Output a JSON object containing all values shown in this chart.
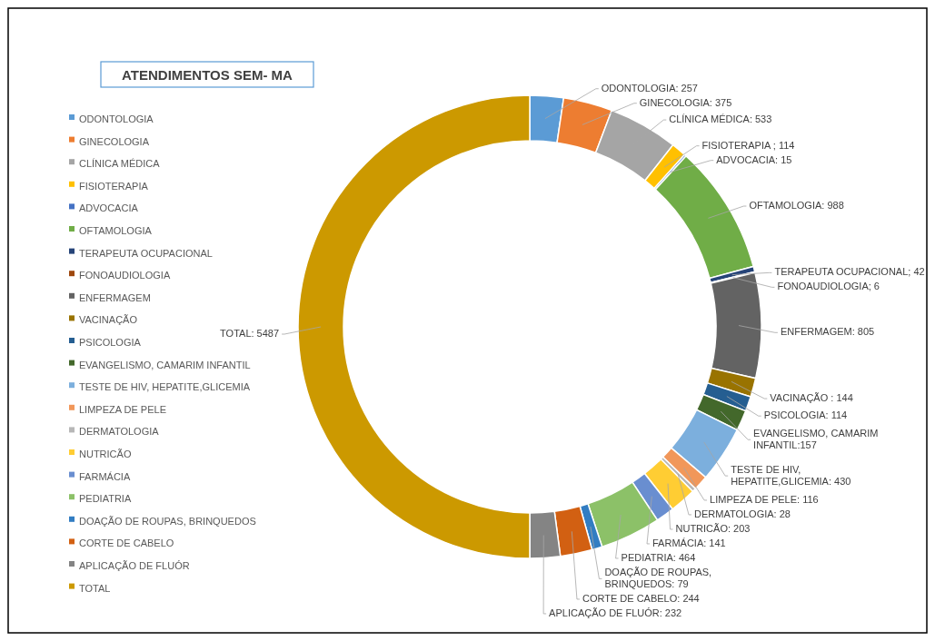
{
  "chart_data": {
    "type": "donut",
    "title": "ATENDIMENTOS SEM- MA",
    "legend": "left",
    "categories": [
      "ODONTOLOGIA",
      "GINECOLOGIA",
      "CLÍNICA MÉDICA",
      "FISIOTERAPIA",
      "ADVOCACIA",
      "OFTAMOLOGIA",
      "TERAPEUTA OCUPACIONAL",
      "FONOAUDIOLOGIA",
      "ENFERMAGEM",
      "VACINAÇÃO",
      "PSICOLOGIA",
      "EVANGELISMO, CAMARIM INFANTIL",
      "TESTE DE HIV, HEPATITE,GLICEMIA",
      "LIMPEZA DE PELE",
      "DERMATOLOGIA",
      "NUTRICÃO",
      "FARMÁCIA",
      "PEDIATRIA",
      "DOAÇÃO DE ROUPAS, BRINQUEDOS",
      "CORTE DE CABELO",
      "APLICAÇÃO DE FLUÓR",
      "TOTAL"
    ],
    "values": [
      257,
      375,
      533,
      114,
      15,
      988,
      42,
      6,
      805,
      144,
      114,
      157,
      430,
      116,
      28,
      203,
      141,
      464,
      79,
      244,
      232,
      5487
    ],
    "colors": [
      "#5b9bd5",
      "#ed7d31",
      "#a5a5a5",
      "#ffc000",
      "#4472c4",
      "#70ad47",
      "#264478",
      "#9e480e",
      "#636363",
      "#997300",
      "#255e91",
      "#43682b",
      "#7cafdd",
      "#f1975a",
      "#b7b7b7",
      "#ffcd33",
      "#698ed0",
      "#8cc168",
      "#327dc2",
      "#d26012",
      "#848484",
      "#cc9900"
    ],
    "value_labels": [
      "ODONTOLOGIA: 257",
      "GINECOLOGIA: 375",
      "CLÍNICA MÉDICA: 533",
      "FISIOTERAPIA ; 114",
      "ADVOCACIA: 15",
      "OFTAMOLOGIA: 988",
      "TERAPEUTA OCUPACIONAL; 42",
      "FONOAUDIOLOGIA; 6",
      "ENFERMAGEM: 805",
      "VACINAÇÃO : 144",
      "PSICOLOGIA: 114",
      "EVANGELISMO, CAMARIM INFANTIL:157",
      "TESTE DE HIV, HEPATITE,GLICEMIA: 430",
      "LIMPEZA DE PELE: 116",
      "DERMATOLOGIA: 28",
      "NUTRICÃO: 203",
      "FARMÁCIA: 141",
      "PEDIATRIA: 464",
      "DOAÇÃO DE ROUPAS, BRINQUEDOS: 79",
      "CORTE DE CABELO: 244",
      "APLICAÇÃO DE FLUÓR: 232",
      "TOTAL: 5487"
    ]
  }
}
